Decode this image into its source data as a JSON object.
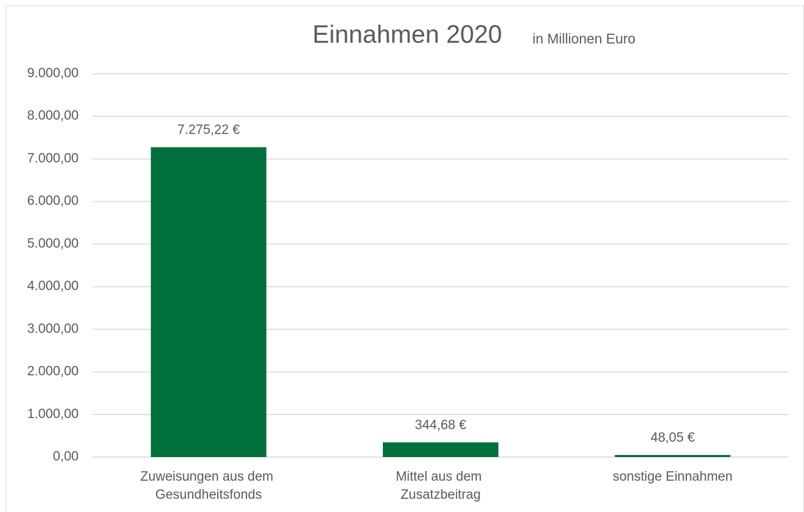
{
  "chart_data": {
    "type": "bar",
    "title": "Einnahmen 2020",
    "subtitle": "in Millionen Euro",
    "categories": [
      "Zuweisungen aus dem Gesundheitsfonds",
      "Mittel aus dem Zusatzbeitrag",
      "sonstige Einnahmen"
    ],
    "values": [
      7275.22,
      344.68,
      48.05
    ],
    "value_labels": [
      "7.275,22 €",
      "344,68 €",
      "48,05 €"
    ],
    "color": "#00703c",
    "ylim": [
      0,
      9000
    ],
    "yticks": [
      {
        "value": 0,
        "label": "0,00"
      },
      {
        "value": 1000,
        "label": "1.000,00"
      },
      {
        "value": 2000,
        "label": "2.000,00"
      },
      {
        "value": 3000,
        "label": "3.000,00"
      },
      {
        "value": 4000,
        "label": "4.000,00"
      },
      {
        "value": 5000,
        "label": "5.000,00"
      },
      {
        "value": 6000,
        "label": "6.000,00"
      },
      {
        "value": 7000,
        "label": "7.000,00"
      },
      {
        "value": 8000,
        "label": "8.000,00"
      },
      {
        "value": 9000,
        "label": "9.000,00"
      }
    ],
    "grid": true
  }
}
